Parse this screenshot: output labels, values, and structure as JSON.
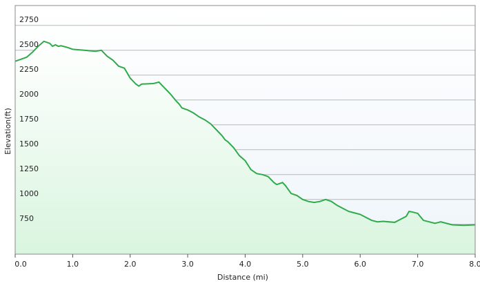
{
  "chart_data": {
    "type": "area",
    "xlabel": "Distance  (mi)",
    "ylabel": "Elevation(ft)",
    "x": [
      0.0,
      0.1,
      0.2,
      0.3,
      0.4,
      0.5,
      0.6,
      0.65,
      0.7,
      0.75,
      0.8,
      0.9,
      1.0,
      1.2,
      1.4,
      1.5,
      1.6,
      1.7,
      1.8,
      1.9,
      2.0,
      2.1,
      2.15,
      2.2,
      2.4,
      2.5,
      2.6,
      2.7,
      2.8,
      2.85,
      2.9,
      3.0,
      3.1,
      3.2,
      3.3,
      3.4,
      3.5,
      3.6,
      3.65,
      3.7,
      3.8,
      3.9,
      4.0,
      4.1,
      4.2,
      4.3,
      4.4,
      4.5,
      4.55,
      4.65,
      4.7,
      4.8,
      4.9,
      5.0,
      5.1,
      5.2,
      5.3,
      5.4,
      5.5,
      5.6,
      5.8,
      5.9,
      6.0,
      6.1,
      6.2,
      6.3,
      6.4,
      6.6,
      6.7,
      6.8,
      6.85,
      6.9,
      7.0,
      7.1,
      7.3,
      7.4,
      7.5,
      7.6,
      7.8,
      8.0
    ],
    "series": [
      {
        "name": "Elevation",
        "color": "#2eaa4a",
        "values": [
          2390,
          2410,
          2430,
          2480,
          2540,
          2590,
          2570,
          2540,
          2555,
          2540,
          2545,
          2530,
          2510,
          2500,
          2490,
          2500,
          2440,
          2400,
          2340,
          2320,
          2220,
          2160,
          2140,
          2160,
          2165,
          2180,
          2120,
          2060,
          1990,
          1960,
          1920,
          1900,
          1870,
          1830,
          1800,
          1760,
          1700,
          1640,
          1600,
          1580,
          1520,
          1440,
          1390,
          1300,
          1260,
          1250,
          1230,
          1170,
          1150,
          1170,
          1140,
          1060,
          1040,
          1000,
          980,
          970,
          980,
          1000,
          980,
          940,
          880,
          865,
          850,
          820,
          790,
          775,
          780,
          770,
          800,
          830,
          880,
          875,
          860,
          790,
          760,
          775,
          760,
          745,
          740,
          745
        ]
      }
    ],
    "xlim": [
      0,
      8.0
    ],
    "xticks": [
      {
        "value": 0,
        "label": "0.0"
      },
      {
        "value": 1,
        "label": "1.0"
      },
      {
        "value": 2,
        "label": "2.0"
      },
      {
        "value": 3,
        "label": "3.0"
      },
      {
        "value": 4,
        "label": "4.0"
      },
      {
        "value": 5,
        "label": "5.0"
      },
      {
        "value": 6,
        "label": "6.0"
      },
      {
        "value": 7,
        "label": "7.0"
      },
      {
        "value": 8,
        "label": "8.0"
      }
    ],
    "ylim": [
      450,
      2950
    ],
    "yticks": [
      750,
      1000,
      1250,
      1500,
      1750,
      2000,
      2250,
      2500,
      2750
    ],
    "grid": true
  }
}
